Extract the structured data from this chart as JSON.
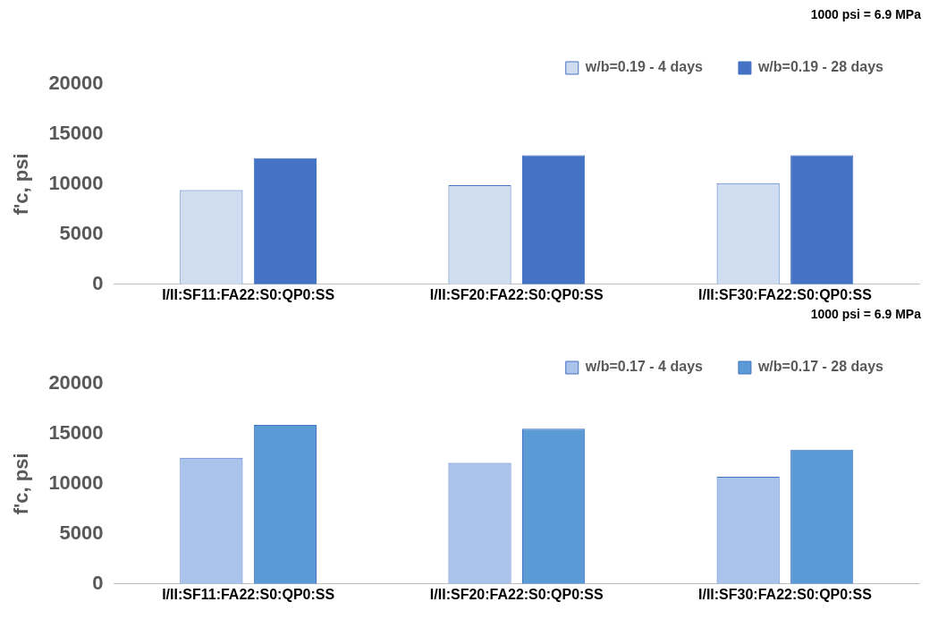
{
  "chart_data": [
    {
      "type": "bar",
      "ylabel": "f'c, psi",
      "categories": [
        "I/II:SF11:FA22:S0:QP0:SS",
        "I/II:SF20:FA22:S0:QP0:SS",
        "I/II:SF30:FA22:S0:QP0:SS"
      ],
      "series": [
        {
          "name": "w/b=0.19 - 4 days",
          "color": "#d0ddf1",
          "values": [
            9400,
            9900,
            10100
          ]
        },
        {
          "name": "w/b=0.19 - 28 days",
          "color": "#4472c4",
          "values": [
            12600,
            12900,
            12900
          ]
        }
      ],
      "ylim": [
        0,
        20000
      ],
      "yticks": [
        0,
        5000,
        10000,
        15000,
        20000
      ],
      "grid": false,
      "legend": "top",
      "annotations": [
        "1000 psi = 6.9 MPa"
      ]
    },
    {
      "type": "bar",
      "ylabel": "f'c, psi",
      "categories": [
        "I/II:SF11:FA22:S0:QP0:SS",
        "I/II:SF20:FA22:S0:QP0:SS",
        "I/II:SF30:FA22:S0:QP0:SS"
      ],
      "series": [
        {
          "name": "w/b=0.17 - 4 days",
          "color": "#a9c3ea",
          "values": [
            12600,
            12100,
            10700
          ]
        },
        {
          "name": "w/b=0.17 - 28 days",
          "color": "#5b9bd5",
          "values": [
            15900,
            15500,
            13400
          ]
        }
      ],
      "ylim": [
        0,
        20000
      ],
      "yticks": [
        0,
        5000,
        10000,
        15000,
        20000
      ],
      "grid": false,
      "legend": "top",
      "annotations": [
        "1000 psi = 6.9 MPa"
      ]
    }
  ]
}
